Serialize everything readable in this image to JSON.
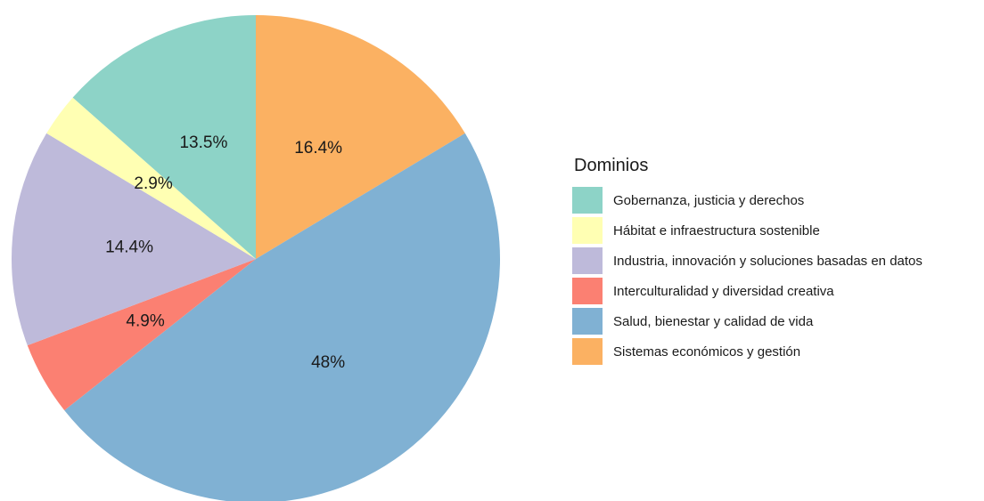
{
  "chart_data": {
    "type": "pie",
    "legend_title": "Dominios",
    "legend_position": "right",
    "slices": [
      {
        "name": "Sistemas económicos y gestión",
        "value": 16.4,
        "label": "16.4%",
        "color": "#FBB162"
      },
      {
        "name": "Salud, bienestar y calidad de vida",
        "value": 48.0,
        "label": "48%",
        "color": "#80B1D3"
      },
      {
        "name": "Interculturalidad y diversidad creativa",
        "value": 4.9,
        "label": "4.9%",
        "color": "#FB8072"
      },
      {
        "name": "Industria, innovación y soluciones basadas en datos",
        "value": 14.4,
        "label": "14.4%",
        "color": "#BEBADA"
      },
      {
        "name": "Hábitat e infraestructura sostenible",
        "value": 2.9,
        "label": "2.9%",
        "color": "#FFFFB3"
      },
      {
        "name": "Gobernanza, justicia y derechos",
        "value": 13.5,
        "label": "13.5%",
        "color": "#8DD3C7"
      }
    ],
    "legend_items": [
      {
        "name": "Gobernanza, justicia y derechos",
        "color": "#8DD3C7"
      },
      {
        "name": "Hábitat e infraestructura sostenible",
        "color": "#FFFFB3"
      },
      {
        "name": "Industria, innovación y soluciones basadas en datos",
        "color": "#BEBADA"
      },
      {
        "name": "Interculturalidad y diversidad creativa",
        "color": "#FB8072"
      },
      {
        "name": "Salud, bienestar y calidad de vida",
        "color": "#80B1D3"
      },
      {
        "name": "Sistemas económicos y gestión",
        "color": "#FBB162"
      }
    ]
  }
}
